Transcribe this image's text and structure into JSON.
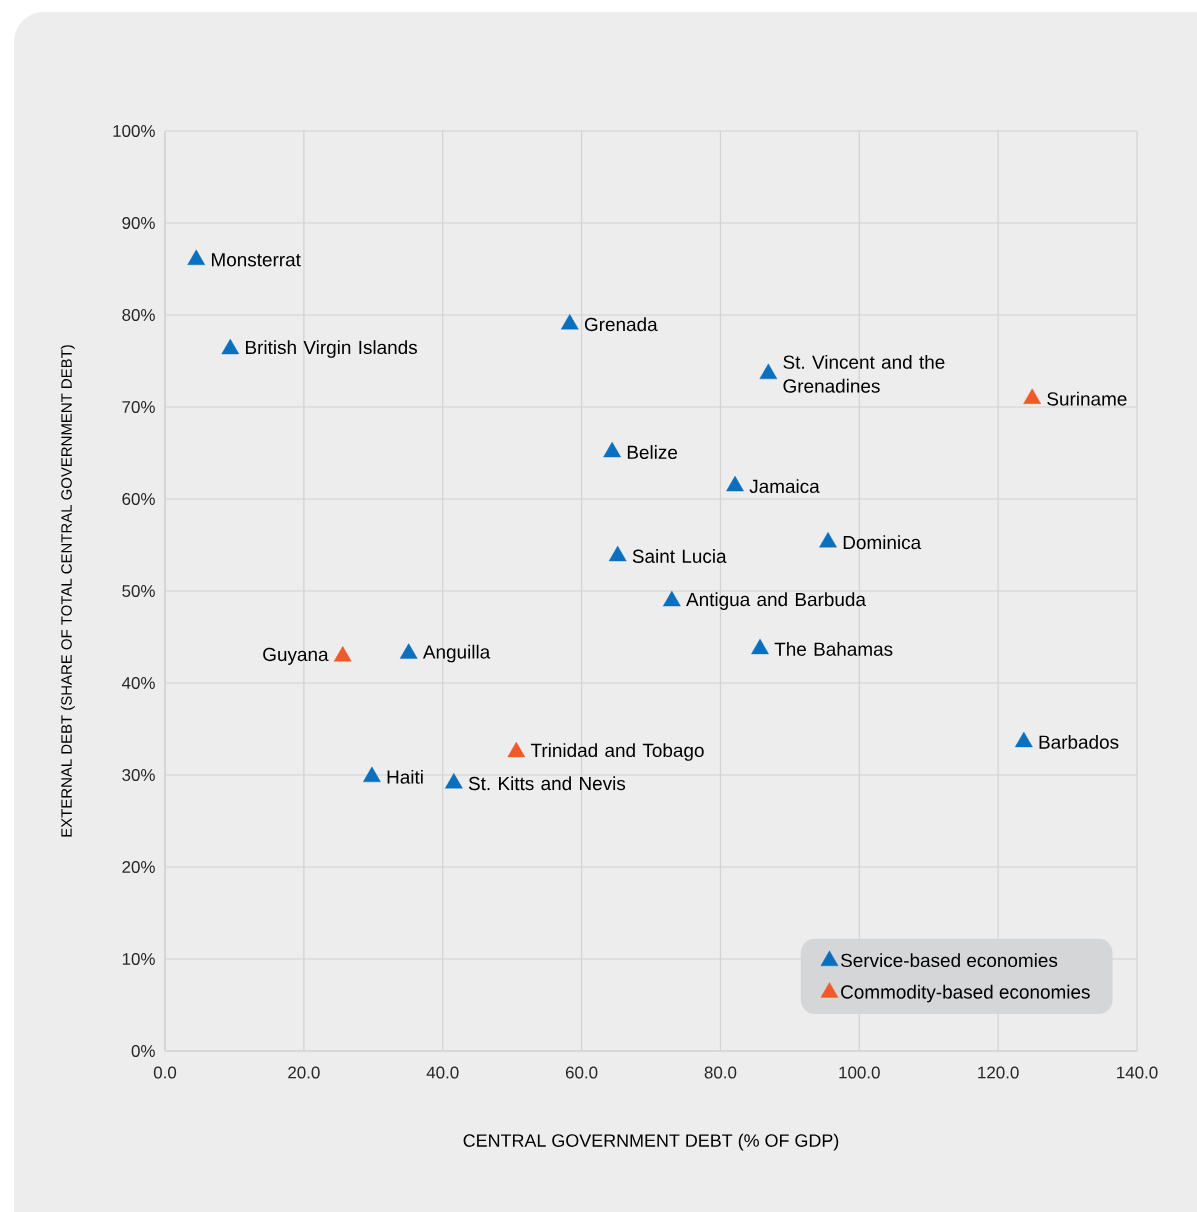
{
  "chart_data": {
    "type": "scatter",
    "xlabel": "CENTRAL GOVERNMENT DEBT (% OF GDP)",
    "ylabel": "EXTERNAL DEBT (SHARE OF TOTAL CENTRAL GOVERNMENT DEBT)",
    "xlim": [
      0,
      140
    ],
    "ylim": [
      0,
      100
    ],
    "xticks": [
      {
        "value": 0,
        "label": "0.0"
      },
      {
        "value": 20,
        "label": "20.0"
      },
      {
        "value": 40,
        "label": "40.0"
      },
      {
        "value": 60,
        "label": "60.0"
      },
      {
        "value": 80,
        "label": "80.0"
      },
      {
        "value": 100,
        "label": "100.0"
      },
      {
        "value": 120,
        "label": "120.0"
      },
      {
        "value": 140,
        "label": "140.0"
      }
    ],
    "yticks": [
      {
        "value": 0,
        "label": "0%"
      },
      {
        "value": 10,
        "label": "10%"
      },
      {
        "value": 20,
        "label": "20%"
      },
      {
        "value": 30,
        "label": "30%"
      },
      {
        "value": 40,
        "label": "40%"
      },
      {
        "value": 50,
        "label": "50%"
      },
      {
        "value": 60,
        "label": "60%"
      },
      {
        "value": 70,
        "label": "70%"
      },
      {
        "value": 80,
        "label": "80%"
      },
      {
        "value": 90,
        "label": "90%"
      },
      {
        "value": 100,
        "label": "100%"
      }
    ],
    "grid": true,
    "legend": "bottom right",
    "marker": "triangle",
    "series": [
      {
        "name": "Service-based economies",
        "color": "#0a6fbd",
        "x": [
          4.5,
          9.4,
          58.3,
          86.9,
          64.4,
          82.1,
          95.5,
          65.2,
          73.0,
          85.7,
          35.1,
          29.8,
          41.6,
          123.7
        ],
        "values": [
          86.0,
          76.3,
          79.0,
          73.6,
          65.1,
          61.4,
          55.3,
          53.8,
          48.9,
          43.7,
          43.2,
          29.8,
          29.1,
          33.6
        ]
      },
      {
        "name": "Commodity-based economies",
        "color": "#f05a28",
        "x": [
          124.9,
          25.6,
          50.6
        ],
        "values": [
          70.9,
          42.9,
          32.5
        ]
      }
    ],
    "annotations": [
      {
        "text": "Monsterrat",
        "x": 4.5,
        "y": 86.0
      },
      {
        "text": "British Virgin Islands",
        "x": 9.4,
        "y": 76.3
      },
      {
        "text": "Grenada",
        "x": 58.3,
        "y": 79.0
      },
      {
        "text": "St. Vincent and the Grenadines",
        "x": 86.9,
        "y": 73.6
      },
      {
        "text": "Belize",
        "x": 64.4,
        "y": 65.1
      },
      {
        "text": "Jamaica",
        "x": 82.1,
        "y": 61.4
      },
      {
        "text": "Dominica",
        "x": 95.5,
        "y": 55.3
      },
      {
        "text": "Saint Lucia",
        "x": 65.2,
        "y": 53.8
      },
      {
        "text": "Antigua and Barbuda",
        "x": 73.0,
        "y": 48.9
      },
      {
        "text": "The Bahamas",
        "x": 85.7,
        "y": 43.7
      },
      {
        "text": "Anguilla",
        "x": 35.1,
        "y": 43.2
      },
      {
        "text": "Haiti",
        "x": 29.8,
        "y": 29.8
      },
      {
        "text": "St. Kitts and Nevis",
        "x": 41.6,
        "y": 29.1
      },
      {
        "text": "Barbados",
        "x": 123.7,
        "y": 33.6
      },
      {
        "text": "Suriname",
        "x": 124.9,
        "y": 70.9
      },
      {
        "text": "Guyana",
        "x": 25.6,
        "y": 42.9
      },
      {
        "text": "Trinidad and Tobago",
        "x": 50.6,
        "y": 32.5
      }
    ]
  }
}
